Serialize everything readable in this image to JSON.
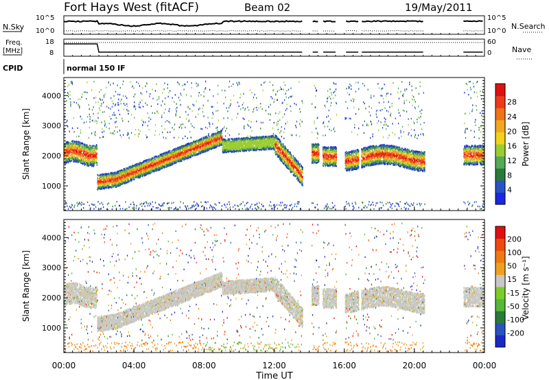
{
  "header": {
    "station": "Fort Hays West (fitACF)",
    "beam": "Beam 02",
    "date": "19/May/2011"
  },
  "strip_labels": {
    "nsky": "N.Sky",
    "nsearch": "N.Search",
    "freq_line1": "Freq.",
    "freq_line2": "[MHz]",
    "nave": "Nave",
    "cpid": "CPID",
    "cpid_value": "normal 150 IF",
    "noise_ticks_left": [
      "10^5",
      "10^0"
    ],
    "noise_ticks_right": [
      "10^5",
      "10^0"
    ],
    "freq_ticks_left": [
      "18",
      "8"
    ],
    "nave_ticks_right": [
      "60",
      "0"
    ]
  },
  "chart_data": [
    {
      "type": "heatmap",
      "panel": "power",
      "ylabel": "Slant Range [km]",
      "xlabel": "",
      "yticks": [
        1000,
        2000,
        3000,
        4000
      ],
      "ylim": [
        180,
        4600
      ],
      "xlim_hours": [
        0,
        24
      ],
      "colorbar": {
        "label": "Power [dB]",
        "ticks": [
          "4",
          "8",
          "12",
          "16",
          "20",
          "24",
          "28"
        ],
        "colors": [
          "#1a28e0",
          "#2a52c8",
          "#2a7a3a",
          "#55aa55",
          "#9acd32",
          "#f2d21a",
          "#f5a623",
          "#f07318",
          "#ee3a1a",
          "#e01010"
        ]
      }
    },
    {
      "type": "heatmap",
      "panel": "velocity",
      "ylabel": "Slant Range [km]",
      "xlabel": "Time UT",
      "yticks": [
        1000,
        2000,
        3000,
        4000
      ],
      "ylim": [
        180,
        4600
      ],
      "xlim_hours": [
        0,
        24
      ],
      "xticklabels": [
        "00:00",
        "04:00",
        "08:00",
        "12:00",
        "16:00",
        "20:00",
        "00:00"
      ],
      "colorbar": {
        "label": "Velocity [m s⁻¹]",
        "ticks": [
          "200",
          "100",
          "50",
          "15",
          "-15",
          "-50",
          "-100",
          "-200"
        ],
        "colors": [
          "#1a28c8",
          "#2a52c0",
          "#2a7a3a",
          "#55b838",
          "#7ccd2a",
          "#c8c8c4",
          "#f0a020",
          "#f07a10",
          "#ee4a10",
          "#e01010"
        ]
      }
    }
  ],
  "data_gaps_hours": [
    [
      13.6,
      14.1
    ],
    [
      14.55,
      14.75
    ],
    [
      15.55,
      16.0
    ],
    [
      16.8,
      16.95
    ],
    [
      20.6,
      22.8
    ]
  ]
}
